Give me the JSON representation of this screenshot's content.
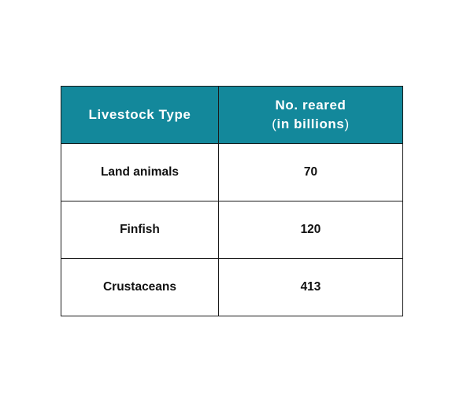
{
  "table": {
    "headers": {
      "type": "Livestock Type",
      "number_line1": "No. reared",
      "number_line2_open": "(",
      "number_line2_text": "in billions",
      "number_line2_close": ")"
    },
    "rows": [
      {
        "type": "Land animals",
        "value": "70"
      },
      {
        "type": "Finfish",
        "value": "120"
      },
      {
        "type": "Crustaceans",
        "value": "413"
      }
    ],
    "colors": {
      "header_bg": "#13889b",
      "header_text": "#ffffff",
      "border": "#1a1a1a"
    }
  }
}
